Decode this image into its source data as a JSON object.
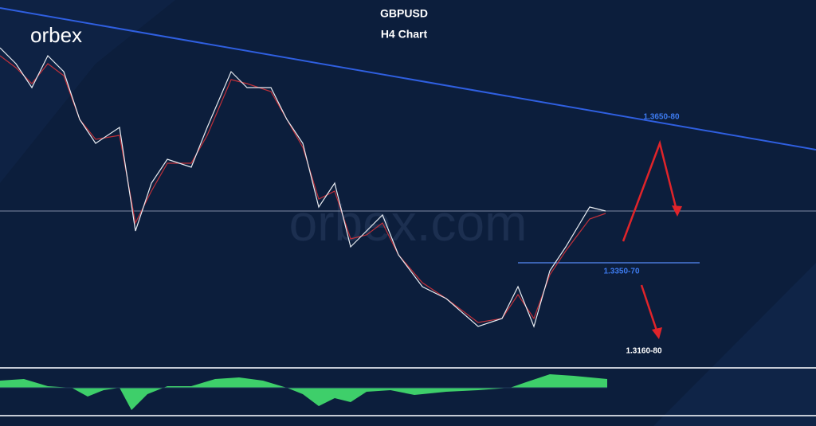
{
  "header": {
    "logo": "orbex",
    "title": "GBPUSD",
    "subtitle": "H4 Chart"
  },
  "watermark": "orbex.com",
  "annotations": [
    "1.3650-80",
    "1.3350-70",
    "1.3160-80"
  ]
}
